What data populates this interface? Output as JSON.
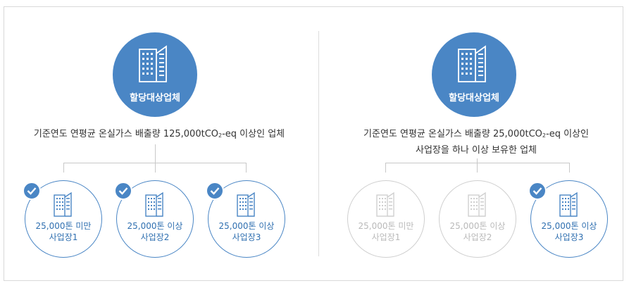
{
  "left": {
    "top_label": "할당대상업체",
    "desc_pre": "기준연도 연평균 온실가스 배출량 125,000tCO",
    "desc_sub": "2",
    "desc_post": "-eq 이상인 업체",
    "sites": [
      {
        "line1": "25,000톤 미만",
        "line2": "사업장1",
        "checked": true
      },
      {
        "line1": "25,000톤 이상",
        "line2": "사업장2",
        "checked": true
      },
      {
        "line1": "25,000톤 이상",
        "line2": "사업장3",
        "checked": true
      }
    ]
  },
  "right": {
    "top_label": "할당대상업체",
    "desc_pre": "기준연도 연평균 온실가스 배출량 25,000tCO",
    "desc_sub": "2",
    "desc_post": "-eq 이상인",
    "desc_line2": "사업장을 하나 이상 보유한 업체",
    "sites": [
      {
        "line1": "25,000톤 미만",
        "line2": "사업장1",
        "checked": false
      },
      {
        "line1": "25,000톤 이상",
        "line2": "사업장2",
        "checked": false
      },
      {
        "line1": "25,000톤 이상",
        "line2": "사업장3",
        "checked": true
      }
    ]
  },
  "colors": {
    "accent": "#4a86c5",
    "accent_text": "#2f6fb0",
    "inactive": "#cfcfcf",
    "line": "#c8c8c8"
  },
  "icons": {
    "top": "building-icon",
    "site": "building-icon",
    "check": "checkmark-icon"
  }
}
